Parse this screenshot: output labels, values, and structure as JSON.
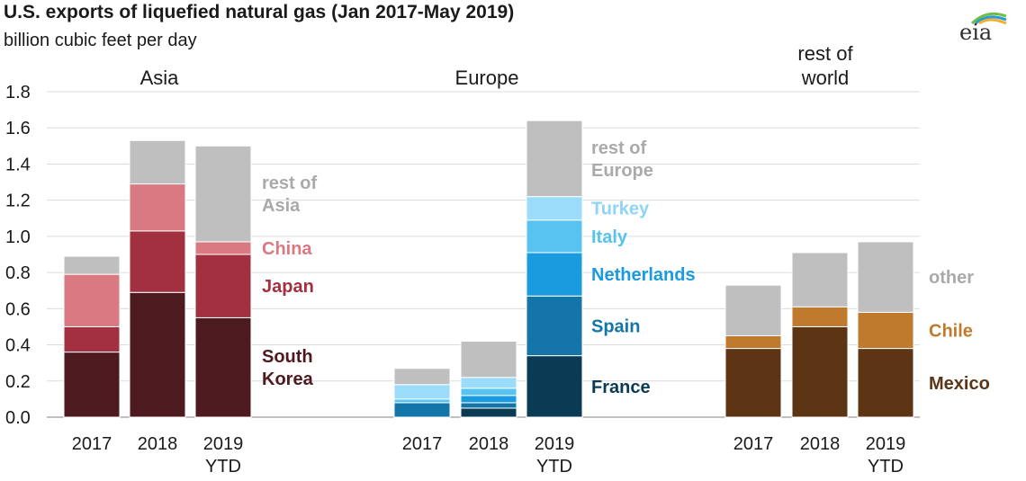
{
  "header": {
    "title": "U.S. exports of liquefied natural gas (Jan 2017-May 2019)",
    "subtitle": "billion cubic feet per day",
    "logo_text": "eia"
  },
  "chart_data": {
    "type": "bar",
    "stacked": true,
    "ylim": [
      0,
      1.8
    ],
    "yticks": [
      "0.0",
      "0.2",
      "0.4",
      "0.6",
      "0.8",
      "1.0",
      "1.2",
      "1.4",
      "1.6",
      "1.8"
    ],
    "grid": true,
    "groups": [
      {
        "name": "Asia",
        "categories": [
          [
            "2017"
          ],
          [
            "2018"
          ],
          [
            "2019",
            "YTD"
          ]
        ],
        "series": [
          {
            "name": [
              "South",
              "Korea"
            ],
            "color": "#4d1a1f",
            "label_color": "#4d1a1f",
            "values": [
              0.36,
              0.69,
              0.55
            ]
          },
          {
            "name": [
              "Japan"
            ],
            "color": "#a33040",
            "label_color": "#a33040",
            "values": [
              0.14,
              0.34,
              0.35
            ]
          },
          {
            "name": [
              "China"
            ],
            "color": "#d97a82",
            "label_color": "#d97a82",
            "values": [
              0.29,
              0.26,
              0.07
            ]
          },
          {
            "name": [
              "rest of",
              "Asia"
            ],
            "color": "#bfbfbf",
            "label_color": "#aaaaaa",
            "values": [
              0.1,
              0.24,
              0.53
            ]
          }
        ]
      },
      {
        "name": "Europe",
        "categories": [
          [
            "2017"
          ],
          [
            "2018"
          ],
          [
            "2019",
            "YTD"
          ]
        ],
        "series": [
          {
            "name": [
              "France"
            ],
            "color": "#0b3a55",
            "label_color": "#0b3a55",
            "values": [
              0.0,
              0.05,
              0.34
            ]
          },
          {
            "name": [
              "Spain"
            ],
            "color": "#1476a8",
            "label_color": "#1476a8",
            "values": [
              0.08,
              0.03,
              0.33
            ]
          },
          {
            "name": [
              "Netherlands"
            ],
            "color": "#1a9be0",
            "label_color": "#1a9be0",
            "values": [
              0.0,
              0.04,
              0.24
            ]
          },
          {
            "name": [
              "Italy"
            ],
            "color": "#56c3f0",
            "label_color": "#56c3f0",
            "values": [
              0.02,
              0.04,
              0.18
            ]
          },
          {
            "name": [
              "Turkey"
            ],
            "color": "#9adcf9",
            "label_color": "#8fd3f5",
            "values": [
              0.08,
              0.06,
              0.13
            ]
          },
          {
            "name": [
              "rest of",
              "Europe"
            ],
            "color": "#bfbfbf",
            "label_color": "#aaaaaa",
            "values": [
              0.09,
              0.2,
              0.42
            ]
          }
        ]
      },
      {
        "name": [
          "rest of",
          "world"
        ],
        "categories": [
          [
            "2017"
          ],
          [
            "2018"
          ],
          [
            "2019",
            "YTD"
          ]
        ],
        "series": [
          {
            "name": [
              "Mexico"
            ],
            "color": "#5c3614",
            "label_color": "#5c3614",
            "values": [
              0.38,
              0.5,
              0.38
            ]
          },
          {
            "name": [
              "Chile"
            ],
            "color": "#c07a2e",
            "label_color": "#c07a2e",
            "values": [
              0.07,
              0.11,
              0.2
            ]
          },
          {
            "name": [
              "other"
            ],
            "color": "#bfbfbf",
            "label_color": "#aaaaaa",
            "values": [
              0.28,
              0.3,
              0.39
            ]
          }
        ]
      }
    ]
  }
}
